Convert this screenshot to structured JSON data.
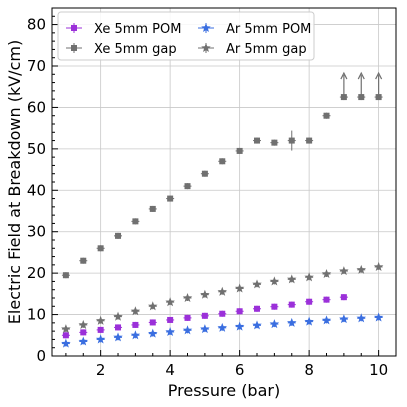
{
  "chart_data": {
    "type": "scatter",
    "xlabel": "Pressure (bar)",
    "ylabel": "Electric Field at Breakdown (kV/cm)",
    "xlim": [
      0.6,
      10.5
    ],
    "ylim": [
      0,
      84
    ],
    "xticks": [
      2,
      4,
      6,
      8,
      10
    ],
    "yticks": [
      0,
      10,
      20,
      30,
      40,
      50,
      60,
      70,
      80
    ],
    "grid": true,
    "legend_position": "top-left",
    "series": [
      {
        "name": "Xe 5mm POM",
        "marker": "square",
        "color": "#9b30d9",
        "x": [
          1,
          1.5,
          2,
          2.5,
          3,
          3.5,
          4,
          4.5,
          5,
          5.5,
          6,
          6.5,
          7,
          7.5,
          8,
          8.5,
          9
        ],
        "y": [
          5.0,
          5.7,
          6.3,
          6.9,
          7.5,
          8.1,
          8.7,
          9.2,
          9.7,
          10.2,
          10.8,
          11.4,
          11.9,
          12.4,
          13.1,
          13.6,
          14.2
        ]
      },
      {
        "name": "Xe 5mm gap",
        "marker": "square",
        "color": "#707070",
        "x": [
          1,
          1.5,
          2,
          2.5,
          3,
          3.5,
          4,
          4.5,
          5,
          5.5,
          6,
          6.5,
          7,
          7.5,
          8,
          8.5,
          9,
          9.5,
          10
        ],
        "y": [
          19.5,
          23.0,
          26.0,
          29.0,
          32.5,
          35.5,
          38.0,
          41.0,
          44.0,
          47.0,
          49.5,
          52.0,
          51.5,
          52.0,
          52.0,
          58.0,
          62.5,
          62.5,
          62.5
        ],
        "lower_limit_indices": [
          16,
          17,
          18
        ]
      },
      {
        "name": "Ar 5mm POM",
        "marker": "star",
        "color": "#3a6ee0",
        "x": [
          1,
          1.5,
          2,
          2.5,
          3,
          3.5,
          4,
          4.5,
          5,
          5.5,
          6,
          6.5,
          7,
          7.5,
          8,
          8.5,
          9,
          9.5,
          10
        ],
        "y": [
          3.0,
          3.5,
          4.0,
          4.5,
          5.0,
          5.4,
          5.8,
          6.2,
          6.5,
          6.8,
          7.1,
          7.4,
          7.7,
          8.0,
          8.3,
          8.6,
          8.9,
          9.1,
          9.3
        ]
      },
      {
        "name": "Ar 5mm gap",
        "marker": "star",
        "color": "#707070",
        "x": [
          1,
          1.5,
          2,
          2.5,
          3,
          3.5,
          4,
          4.5,
          5,
          5.5,
          6,
          6.5,
          7,
          7.5,
          8,
          8.5,
          9,
          9.5,
          10
        ],
        "y": [
          6.5,
          7.5,
          8.5,
          9.5,
          10.8,
          12.0,
          13.0,
          14.0,
          14.8,
          15.5,
          16.3,
          17.3,
          18.0,
          18.5,
          19.0,
          19.8,
          20.5,
          20.8,
          21.5
        ]
      }
    ]
  }
}
